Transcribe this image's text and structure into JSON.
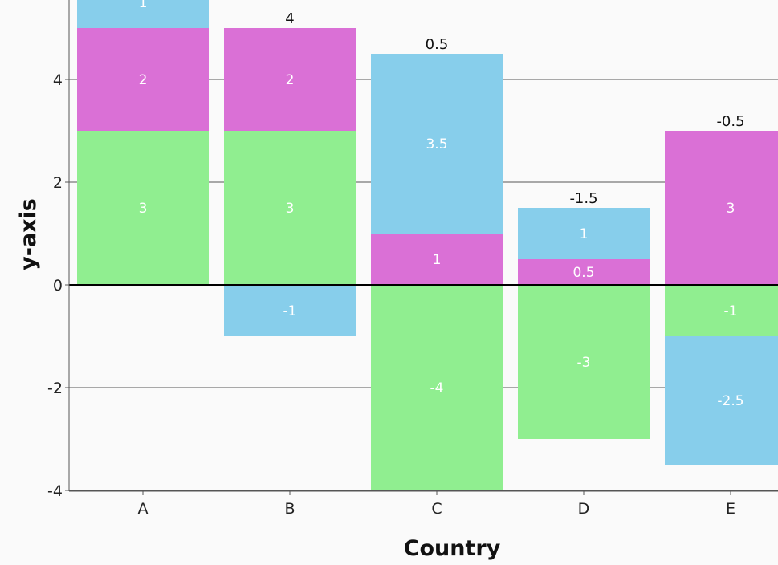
{
  "chart_data": {
    "type": "bar",
    "stacked": true,
    "categories": [
      "A",
      "B",
      "C",
      "D",
      "E"
    ],
    "series": [
      {
        "values": [
          3,
          3,
          -4,
          -3,
          -1
        ],
        "color": "#90ee90"
      },
      {
        "values": [
          2,
          2,
          1,
          0.5,
          3
        ],
        "color": "#da70d6"
      },
      {
        "values": [
          1,
          -1,
          3.5,
          1,
          -2.5
        ],
        "color": "#87ceeb"
      }
    ],
    "totals": [
      "",
      "4",
      "0.5",
      "-1.5",
      "-0.5"
    ],
    "xlabel": "Country",
    "ylabel": "y-axis",
    "ylim": [
      -4,
      5.6
    ],
    "yticks": [
      -4,
      -2,
      0,
      2,
      4
    ],
    "grid": "horizontal"
  }
}
